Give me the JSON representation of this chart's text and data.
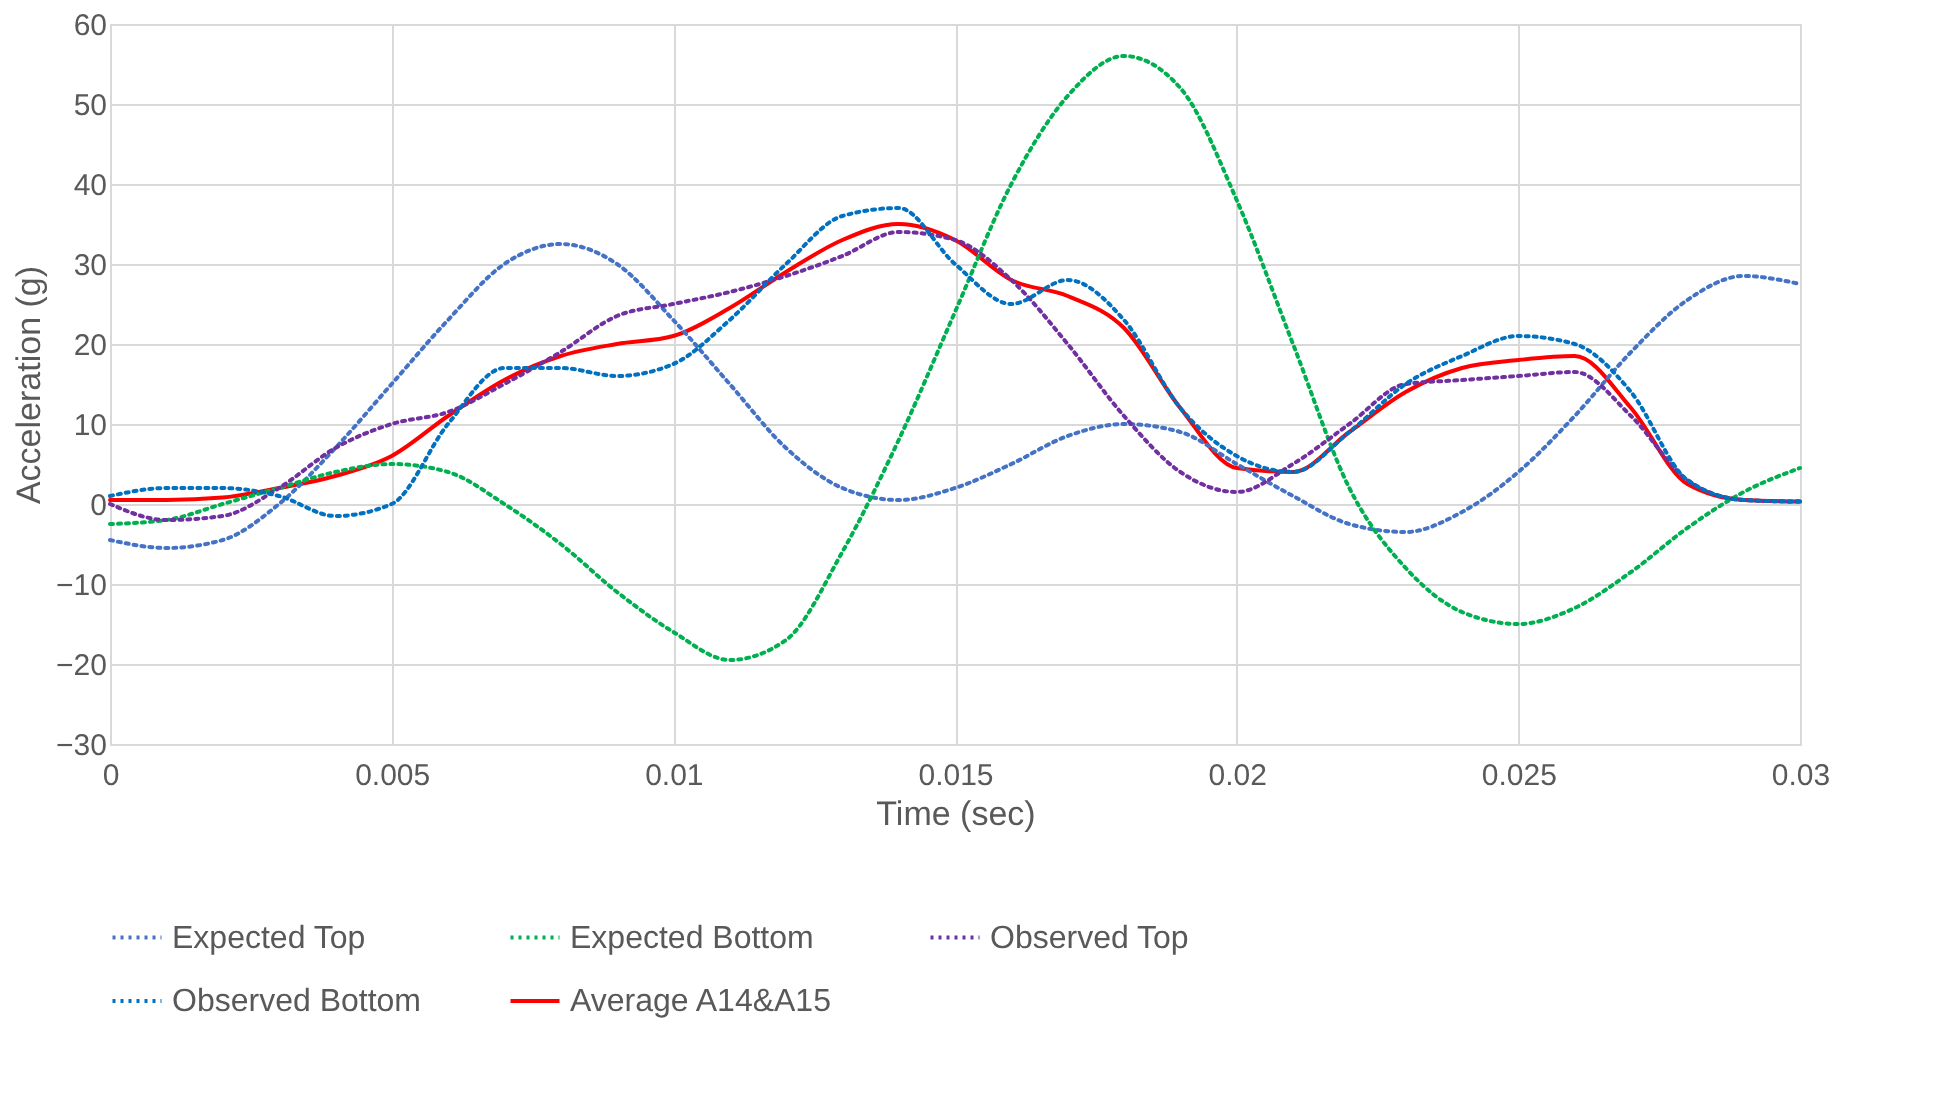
{
  "chart_data": {
    "type": "line",
    "xlabel": "Time (sec)",
    "ylabel": "Acceleration (g)",
    "x": [
      0,
      0.001,
      0.002,
      0.003,
      0.004,
      0.005,
      0.006,
      0.007,
      0.008,
      0.009,
      0.01,
      0.011,
      0.012,
      0.013,
      0.014,
      0.015,
      0.016,
      0.017,
      0.018,
      0.019,
      0.02,
      0.021,
      0.022,
      0.023,
      0.024,
      0.025,
      0.026,
      0.027,
      0.028,
      0.029,
      0.03
    ],
    "xlim": [
      0,
      0.03
    ],
    "xticks": [
      0,
      0.005,
      0.01,
      0.015,
      0.02,
      0.025,
      0.03
    ],
    "ylim": [
      -30,
      60
    ],
    "yticks": [
      -30,
      -20,
      -10,
      0,
      10,
      20,
      30,
      40,
      50,
      60
    ],
    "grid": true,
    "legend": "bottom",
    "marker": "none",
    "series": [
      {
        "name": "Expected Top",
        "color": "#4472c4",
        "line_style": "dotted",
        "values": [
          -4.5,
          -5.5,
          -4.5,
          0,
          7,
          15,
          23,
          30,
          32.5,
          30,
          23,
          15,
          7,
          2,
          0.5,
          2,
          5,
          8.5,
          10,
          9,
          5,
          1,
          -2.5,
          -3.5,
          -1,
          4,
          11,
          19,
          25.5,
          28.5,
          27.5
        ]
      },
      {
        "name": "Expected Bottom",
        "color": "#00b050",
        "line_style": "dotted",
        "values": [
          -2.5,
          -2,
          0,
          2,
          4,
          5,
          4,
          0,
          -5,
          -11,
          -16,
          -19.5,
          -17,
          -6,
          8,
          24,
          40,
          51,
          56,
          52,
          38,
          20,
          2,
          -8,
          -13.5,
          -15,
          -13,
          -8.5,
          -3,
          1.5,
          4.5
        ]
      },
      {
        "name": "Observed Top",
        "color": "#7030a0",
        "line_style": "dotted",
        "values": [
          0,
          -2,
          -1.5,
          2,
          7,
          10,
          11.5,
          15,
          19,
          23.5,
          25,
          26.5,
          28.5,
          31,
          34,
          33,
          28,
          20,
          11,
          4,
          1.5,
          5,
          10,
          15,
          15.5,
          16,
          16.5,
          11,
          3,
          0.5,
          0.3
        ]
      },
      {
        "name": "Observed Bottom",
        "color": "#0070c0",
        "line_style": "dotted",
        "values": [
          1,
          2,
          2,
          1,
          -1.5,
          0,
          10,
          17,
          17,
          16,
          17.5,
          23,
          30,
          36,
          37,
          30,
          25,
          28,
          23,
          12,
          6,
          4,
          9,
          15,
          18.5,
          21,
          20,
          14,
          3,
          0.5,
          0.3
        ]
      },
      {
        "name": "Average  A14&A15",
        "color": "#ff0000",
        "line_style": "solid",
        "values": [
          0.5,
          0.5,
          0.8,
          2,
          3.5,
          6,
          11,
          15.5,
          18.5,
          20,
          21,
          24.5,
          29,
          33,
          35,
          33,
          28,
          26,
          22,
          12,
          4.5,
          4,
          9,
          14,
          17,
          18,
          18.5,
          12,
          2.5,
          0.5,
          0.3
        ]
      }
    ]
  }
}
